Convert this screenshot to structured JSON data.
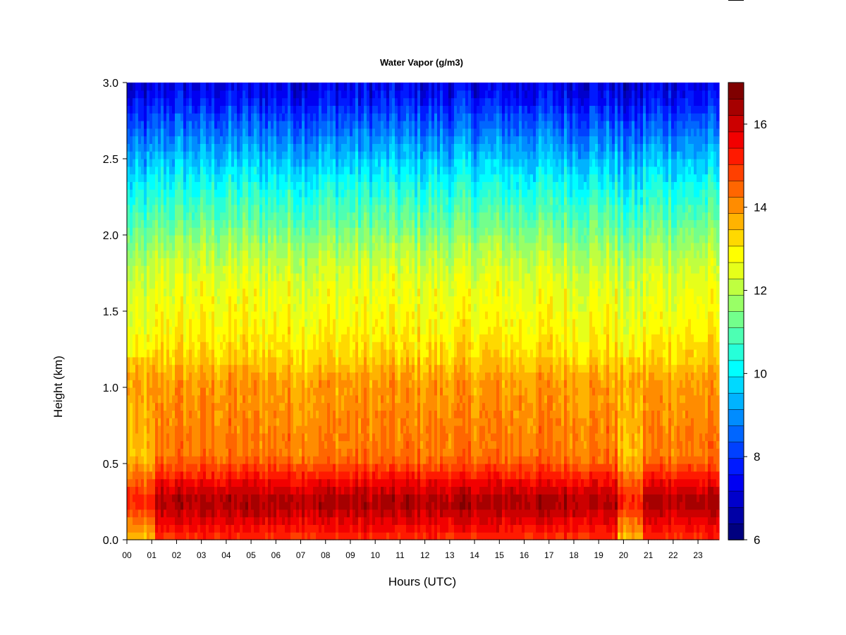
{
  "chart_data": {
    "type": "heatmap",
    "title": "Water Vapor (g/m3)",
    "xlabel": "Hours (UTC)",
    "ylabel": "Height (km)",
    "x_ticks": [
      "00",
      "01",
      "02",
      "03",
      "04",
      "05",
      "06",
      "07",
      "08",
      "09",
      "10",
      "11",
      "12",
      "13",
      "14",
      "15",
      "16",
      "17",
      "18",
      "19",
      "20",
      "21",
      "22",
      "23"
    ],
    "y_ticks": [
      "0.0",
      "0.5",
      "1.0",
      "1.5",
      "2.0",
      "2.5",
      "3.0"
    ],
    "xlim": [
      0,
      23.85
    ],
    "ylim": [
      0,
      3.0
    ],
    "colorbar": {
      "range": [
        6,
        17
      ],
      "levels": [
        6,
        6.5,
        7,
        7.5,
        8,
        8.5,
        9,
        9.5,
        10,
        10.5,
        11,
        11.5,
        12,
        12.5,
        13,
        13.5,
        14,
        14.5,
        15,
        15.5,
        16,
        16.5,
        17
      ],
      "tick_labels": [
        "6",
        "8",
        "10",
        "12",
        "14",
        "16"
      ],
      "colors": [
        "#00007F",
        "#0000A6",
        "#0000CC",
        "#0000F2",
        "#001AFF",
        "#0040FF",
        "#0066FF",
        "#008CFF",
        "#00B3FF",
        "#00D9FF",
        "#00FFFF",
        "#26FFD9",
        "#4DFFB3",
        "#73FF8C",
        "#99FF66",
        "#BFFF40",
        "#E6FF1A",
        "#FFFF00",
        "#FFD900",
        "#FFB300",
        "#FF8C00",
        "#FF6600",
        "#FF4000",
        "#FF1A00",
        "#F20000",
        "#CC0000",
        "#A60000",
        "#7F0000"
      ]
    },
    "profile": {
      "heights_km": [
        0.0,
        0.1,
        0.2,
        0.25,
        0.35,
        0.45,
        0.55,
        0.7,
        0.9,
        1.05,
        1.2,
        1.4,
        1.7,
        1.9,
        2.1,
        2.3,
        2.5,
        2.7,
        2.9,
        3.0
      ],
      "values": [
        15.0,
        15.6,
        16.2,
        16.4,
        15.8,
        15.0,
        14.3,
        14.2,
        14.0,
        13.9,
        13.3,
        12.9,
        12.5,
        11.9,
        11.1,
        10.4,
        9.5,
        8.6,
        7.6,
        7.2
      ]
    },
    "moist_columns": [
      {
        "hour_start": 0.0,
        "hour_end": 1.15,
        "note_value": -1.6
      },
      {
        "hour_start": 19.75,
        "hour_end": 20.75,
        "note_value": -1.5
      }
    ]
  }
}
